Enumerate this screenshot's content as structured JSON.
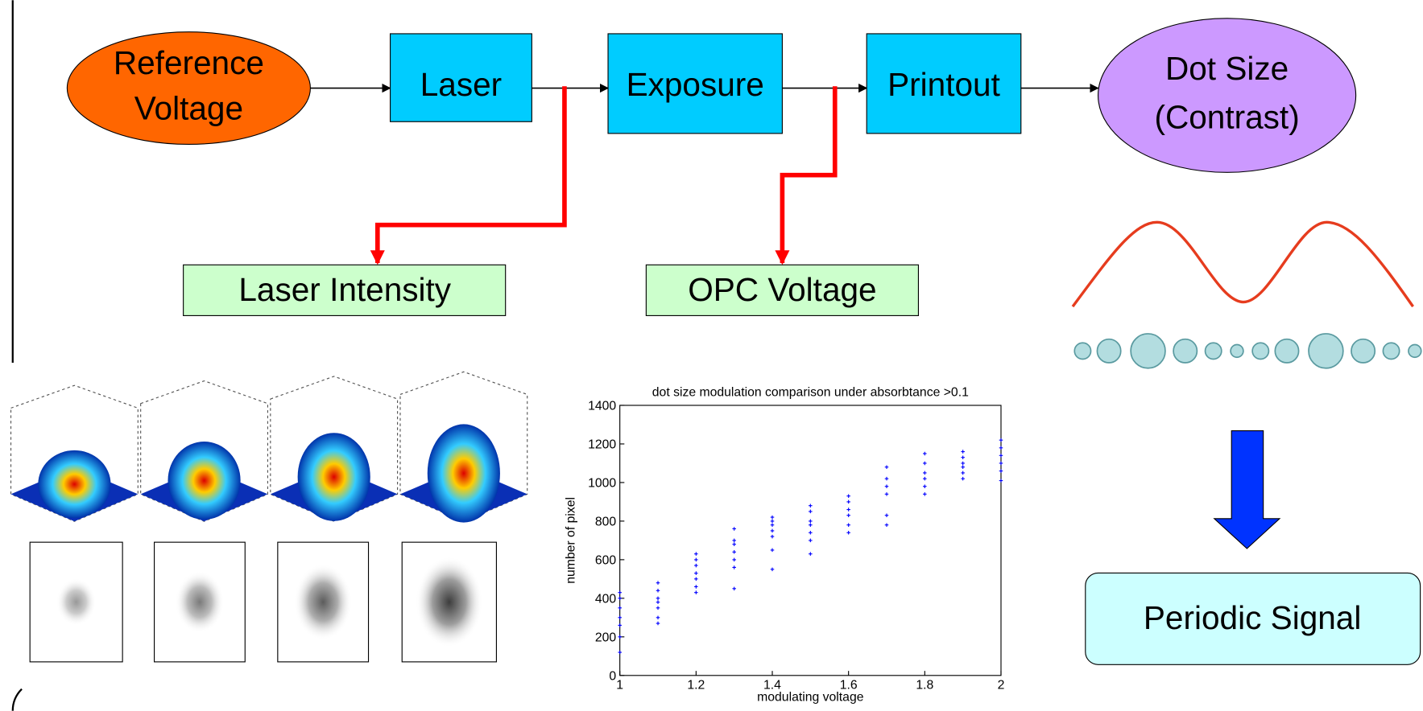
{
  "nodes": [
    {
      "label": [
        "Reference",
        "Voltage"
      ]
    },
    {
      "label": "Laser"
    },
    {
      "label": "Exposure"
    },
    {
      "label": "Printout"
    },
    {
      "label": [
        "Dot Size",
        "(Contrast)"
      ]
    },
    {
      "label": "Laser Intensity"
    },
    {
      "label": "OPC Voltage"
    },
    {
      "label": "Periodic Signal"
    }
  ],
  "chart_data": {
    "type": "scatter",
    "title": "dot size modulation comparison under absorbtance >0.1",
    "x_label": "modulating voltage",
    "y_label": "number of pixel",
    "color": "#0000ff",
    "x": [
      1,
      1,
      1,
      1,
      1,
      1,
      1,
      1.1,
      1.1,
      1.1,
      1.1,
      1.1,
      1.1,
      1.1,
      1.2,
      1.2,
      1.2,
      1.2,
      1.2,
      1.2,
      1.2,
      1.3,
      1.3,
      1.3,
      1.3,
      1.3,
      1.3,
      1.3,
      1.4,
      1.4,
      1.4,
      1.4,
      1.4,
      1.4,
      1.4,
      1.5,
      1.5,
      1.5,
      1.5,
      1.5,
      1.5,
      1.5,
      1.6,
      1.6,
      1.6,
      1.6,
      1.6,
      1.6,
      1.7,
      1.7,
      1.7,
      1.7,
      1.7,
      1.7,
      1.8,
      1.8,
      1.8,
      1.8,
      1.8,
      1.8,
      1.9,
      1.9,
      1.9,
      1.9,
      1.9,
      1.9,
      2,
      2,
      2,
      2,
      2,
      2
    ],
    "values": [
      120,
      200,
      260,
      300,
      350,
      400,
      430,
      270,
      300,
      350,
      380,
      400,
      440,
      480,
      430,
      460,
      500,
      530,
      570,
      600,
      630,
      450,
      560,
      600,
      640,
      680,
      700,
      760,
      550,
      650,
      720,
      750,
      780,
      800,
      820,
      630,
      700,
      740,
      780,
      800,
      850,
      880,
      740,
      780,
      830,
      860,
      900,
      930,
      780,
      830,
      940,
      980,
      1020,
      1080,
      940,
      980,
      1020,
      1050,
      1100,
      1150,
      1020,
      1050,
      1080,
      1100,
      1130,
      1160,
      1010,
      1060,
      1100,
      1140,
      1180,
      1220
    ],
    "xlim": [
      1,
      2
    ],
    "ylim": [
      0,
      1400
    ],
    "xticks": [
      1,
      1.2,
      1.4,
      1.6,
      1.8,
      2
    ],
    "yticks": [
      0,
      200,
      400,
      600,
      800,
      1000,
      1200,
      1400
    ]
  }
}
